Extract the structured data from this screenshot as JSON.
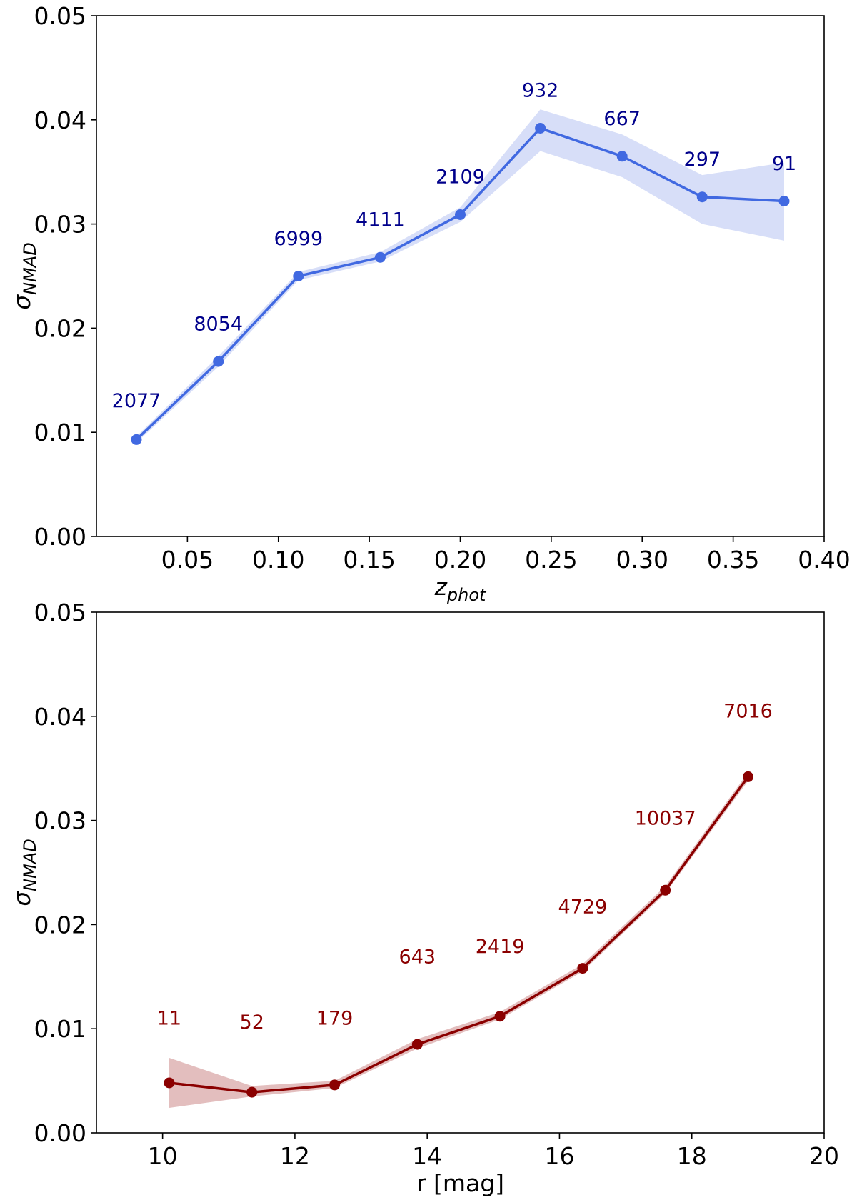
{
  "chart_data": [
    {
      "type": "line",
      "x": [
        0.022,
        0.067,
        0.111,
        0.156,
        0.2,
        0.244,
        0.289,
        0.333,
        0.378
      ],
      "values": [
        0.0093,
        0.0168,
        0.025,
        0.0268,
        0.0309,
        0.0392,
        0.0365,
        0.0326,
        0.0322
      ],
      "lower": [
        0.009,
        0.0163,
        0.0246,
        0.0264,
        0.0302,
        0.037,
        0.0345,
        0.03,
        0.0284
      ],
      "upper": [
        0.0096,
        0.0173,
        0.0254,
        0.0273,
        0.0316,
        0.041,
        0.0386,
        0.0347,
        0.0359
      ],
      "labels": [
        "2077",
        "8054",
        "6999",
        "4111",
        "2109",
        "932",
        "667",
        "297",
        "91"
      ],
      "label_y": [
        0.0124,
        0.0198,
        0.028,
        0.0298,
        0.0339,
        0.0422,
        0.0395,
        0.0356,
        0.0352
      ],
      "xlim": [
        0.0,
        0.4
      ],
      "ylim": [
        0.0,
        0.05
      ],
      "xticks": [
        "0.05",
        "0.10",
        "0.15",
        "0.20",
        "0.25",
        "0.30",
        "0.35",
        "0.40"
      ],
      "xtick_values": [
        0.05,
        0.1,
        0.15,
        0.2,
        0.25,
        0.3,
        0.35,
        0.4
      ],
      "yticks": [
        "0.00",
        "0.01",
        "0.02",
        "0.03",
        "0.04",
        "0.05"
      ],
      "ytick_values": [
        0.0,
        0.01,
        0.02,
        0.03,
        0.04,
        0.05
      ],
      "xlabel": "z",
      "xlabel_sub": "phot",
      "ylabel": "σ",
      "ylabel_sub": "NMAD",
      "line_color": "#4169e1",
      "band_color": "#c9d3f5",
      "label_color": "#00008b",
      "title": ""
    },
    {
      "type": "line",
      "x": [
        10.1,
        11.35,
        12.6,
        13.85,
        15.1,
        16.35,
        17.6,
        18.85
      ],
      "values": [
        0.0048,
        0.0039,
        0.0046,
        0.0085,
        0.0112,
        0.0158,
        0.0233,
        0.0342
      ],
      "lower": [
        0.0024,
        0.0035,
        0.0043,
        0.0081,
        0.0109,
        0.0155,
        0.023,
        0.0338
      ],
      "upper": [
        0.0072,
        0.0045,
        0.005,
        0.009,
        0.0116,
        0.0162,
        0.0237,
        0.0346
      ],
      "labels": [
        "11",
        "52",
        "179",
        "643",
        "2419",
        "4729",
        "10037",
        "7016"
      ],
      "label_x": [
        10.1,
        11.35,
        12.6,
        13.85,
        15.1,
        16.35,
        17.6,
        18.85
      ],
      "label_y": [
        0.0104,
        0.01,
        0.0104,
        0.0163,
        0.0173,
        0.0211,
        0.0296,
        0.0399
      ],
      "xlim": [
        9,
        20
      ],
      "ylim": [
        0.0,
        0.05
      ],
      "xticks": [
        "10",
        "12",
        "14",
        "16",
        "18",
        "20"
      ],
      "xtick_values": [
        10,
        12,
        14,
        16,
        18,
        20
      ],
      "yticks": [
        "0.00",
        "0.01",
        "0.02",
        "0.03",
        "0.04",
        "0.05"
      ],
      "ytick_values": [
        0.0,
        0.01,
        0.02,
        0.03,
        0.04,
        0.05
      ],
      "xlabel": "r [mag]",
      "xlabel_sub": "",
      "ylabel": "σ",
      "ylabel_sub": "NMAD",
      "line_color": "#8b0000",
      "band_color": "#d9a8a8",
      "label_color": "#8b0000",
      "title": ""
    }
  ]
}
